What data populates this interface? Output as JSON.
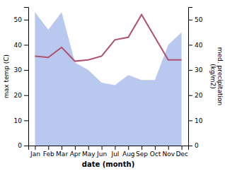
{
  "chart_data": {
    "type": "line",
    "x_label": "date (month)",
    "y_label": "max temp (C)",
    "y2_label": "med. precipitation\n(kg/m2)",
    "categories": [
      "Jan",
      "Feb",
      "Mar",
      "Apr",
      "May",
      "Jun",
      "Jul",
      "Aug",
      "Sep",
      "Oct",
      "Nov",
      "Dec"
    ],
    "series": [
      {
        "type": "area",
        "color": "#b8c8ee",
        "values": [
          53,
          46,
          53,
          33,
          30,
          25,
          24,
          28,
          26,
          26,
          40,
          45
        ]
      },
      {
        "type": "line",
        "color": "#b05070",
        "values": [
          35.5,
          35,
          39,
          33.5,
          34,
          35.5,
          42,
          43,
          52,
          43,
          34,
          34
        ]
      }
    ],
    "ylim": [
      0,
      55
    ],
    "yticks": [
      0,
      10,
      20,
      30,
      40,
      50
    ],
    "y2lim": [
      0,
      55
    ],
    "y2ticks": [
      0,
      10,
      20,
      30,
      40,
      50
    ],
    "grid": false
  }
}
